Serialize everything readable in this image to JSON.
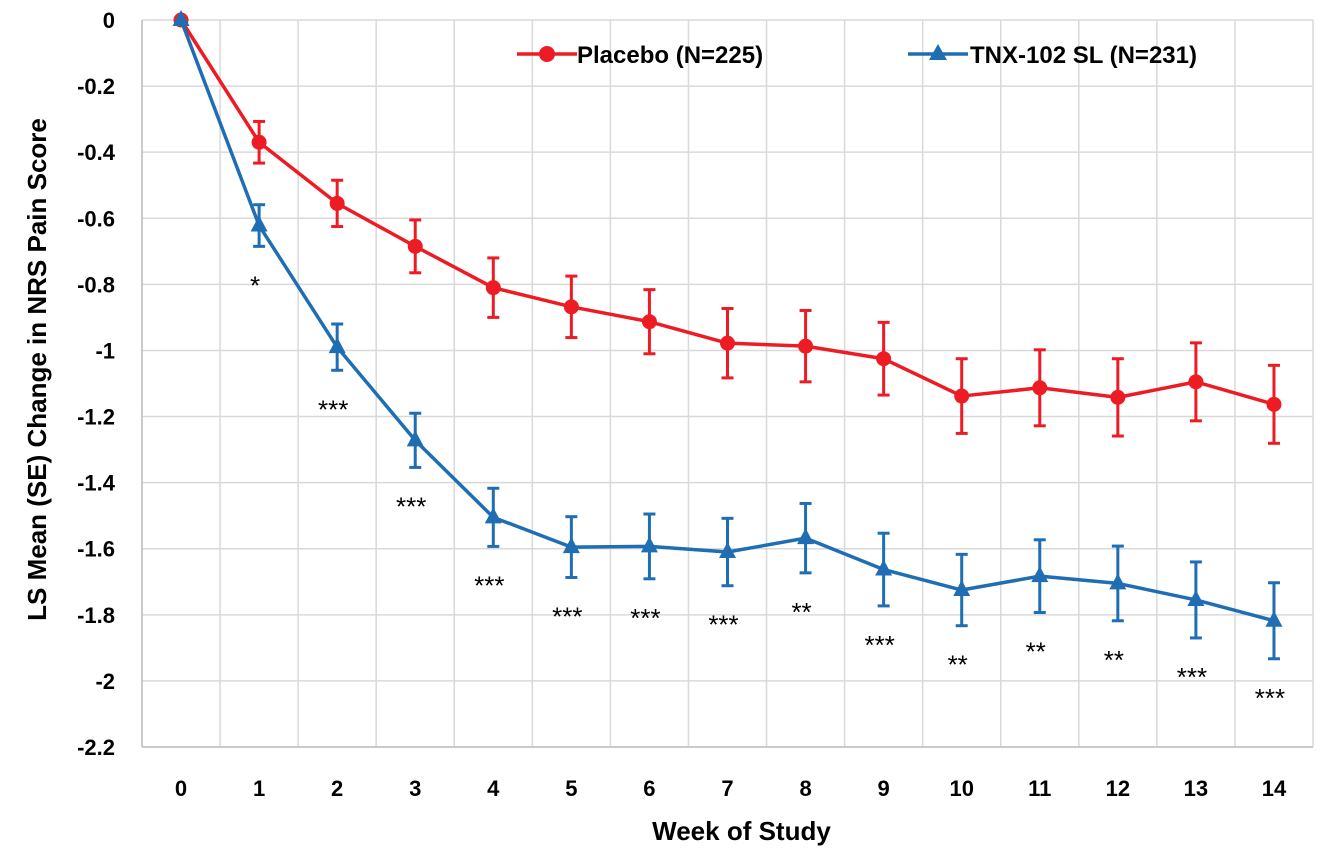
{
  "chart_data": {
    "type": "line",
    "title": "",
    "xlabel": "Week of Study",
    "ylabel": "LS Mean (SE) Change in NRS Pain Score",
    "xlim": [
      0,
      14
    ],
    "ylim": [
      -2.2,
      0
    ],
    "x_ticks": [
      "0",
      "1",
      "2",
      "3",
      "4",
      "5",
      "6",
      "7",
      "8",
      "9",
      "10",
      "11",
      "12",
      "13",
      "14"
    ],
    "y_ticks": [
      "0",
      "-0.2",
      "-0.4",
      "-0.6",
      "-0.8",
      "-1",
      "-1.2",
      "-1.4",
      "-1.6",
      "-1.8",
      "-2",
      "-2.2"
    ],
    "grid": true,
    "legend_position": "top-right",
    "x": [
      0,
      1,
      2,
      3,
      4,
      5,
      6,
      7,
      8,
      9,
      10,
      11,
      12,
      13,
      14
    ],
    "series": [
      {
        "name": "Placebo (N=225)",
        "color": "#ED1C24",
        "marker": "circle",
        "values": [
          0,
          -0.37,
          -0.555,
          -0.685,
          -0.81,
          -0.868,
          -0.913,
          -0.978,
          -0.987,
          -1.025,
          -1.138,
          -1.113,
          -1.142,
          -1.095,
          -1.163
        ],
        "se": [
          0,
          0.063,
          0.07,
          0.08,
          0.09,
          0.093,
          0.097,
          0.105,
          0.108,
          0.11,
          0.113,
          0.115,
          0.117,
          0.118,
          0.118
        ]
      },
      {
        "name": "TNX-102 SL (N=231)",
        "color": "#1F6EB4",
        "marker": "triangle",
        "values": [
          0,
          -0.622,
          -0.99,
          -1.272,
          -1.505,
          -1.595,
          -1.593,
          -1.61,
          -1.568,
          -1.663,
          -1.725,
          -1.683,
          -1.705,
          -1.755,
          -1.818
        ],
        "se": [
          0,
          0.063,
          0.07,
          0.082,
          0.088,
          0.092,
          0.098,
          0.102,
          0.105,
          0.11,
          0.108,
          0.11,
          0.113,
          0.115,
          0.115
        ]
      }
    ],
    "annotations": [
      "",
      "*",
      "***",
      "***",
      "***",
      "***",
      "***",
      "***",
      "**",
      "***",
      "**",
      "**",
      "**",
      "***",
      "***"
    ]
  }
}
